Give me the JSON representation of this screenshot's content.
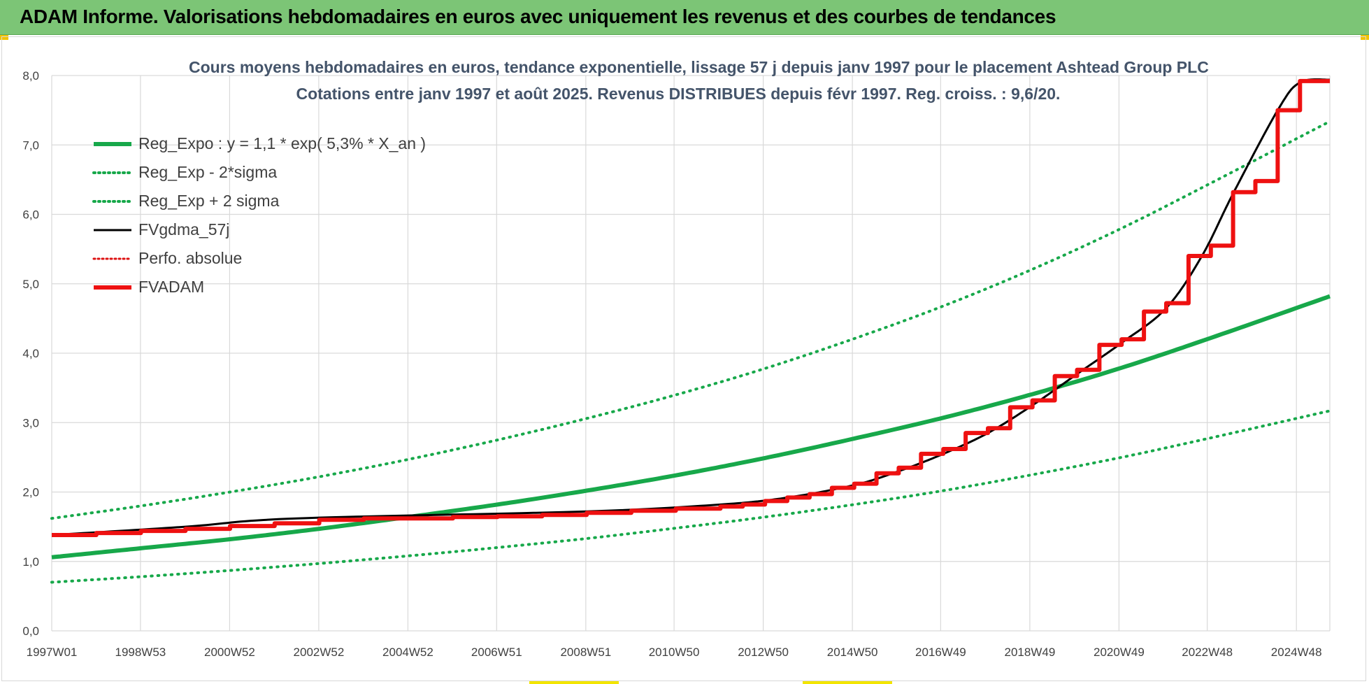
{
  "banner": {
    "title": "ADAM Informe. Valorisations hebdomadaires en euros avec uniquement les revenus et des courbes de tendances"
  },
  "colors": {
    "banner": "#7cc576",
    "reg_expo": "#17a84a",
    "fvgdma": "#000000",
    "fvadam": "#ee1111",
    "perfo": "#dd1111",
    "title_text": "#44546a",
    "grid": "#d9d9d9"
  },
  "chart_data": {
    "type": "line",
    "title_line1": "Cours moyens hebdomadaires en euros, tendance exponentielle, lissage 57 j depuis janv 1997 pour le placement Ashtead Group PLC",
    "title_line2": "Cotations entre janv 1997 et août 2025.  Revenus DISTRIBUES depuis févr 1997.  Reg. croiss. : 9,6/20.",
    "xlabel": "",
    "ylabel": "",
    "ylim": [
      0,
      8
    ],
    "xlim": [
      1997.0,
      2025.67
    ],
    "grid": true,
    "legend_position": "top-left",
    "y_ticks": [
      "0,0",
      "1,0",
      "2,0",
      "3,0",
      "4,0",
      "5,0",
      "6,0",
      "7,0",
      "8,0"
    ],
    "x_ticks": [
      {
        "label": "1997W01",
        "x": 1997.0
      },
      {
        "label": "1998W53",
        "x": 1998.99
      },
      {
        "label": "2000W52",
        "x": 2000.99
      },
      {
        "label": "2002W52",
        "x": 2002.99
      },
      {
        "label": "2004W52",
        "x": 2004.99
      },
      {
        "label": "2006W51",
        "x": 2006.98
      },
      {
        "label": "2008W51",
        "x": 2008.98
      },
      {
        "label": "2010W50",
        "x": 2010.96
      },
      {
        "label": "2012W50",
        "x": 2012.96
      },
      {
        "label": "2014W50",
        "x": 2014.96
      },
      {
        "label": "2016W49",
        "x": 2016.94
      },
      {
        "label": "2018W49",
        "x": 2018.94
      },
      {
        "label": "2020W49",
        "x": 2020.94
      },
      {
        "label": "2022W48",
        "x": 2022.92
      },
      {
        "label": "2024W48",
        "x": 2024.92
      }
    ],
    "series": [
      {
        "name": "Reg_Expo : y = 1,1 * exp( 5,3% *  X_an )",
        "style": "solid-thick",
        "color": "#17a84a",
        "points": [
          [
            1997.0,
            1.06
          ],
          [
            1999.0,
            1.19
          ],
          [
            2001.0,
            1.32
          ],
          [
            2003.0,
            1.47
          ],
          [
            2005.0,
            1.64
          ],
          [
            2007.0,
            1.82
          ],
          [
            2009.0,
            2.02
          ],
          [
            2011.0,
            2.24
          ],
          [
            2013.0,
            2.49
          ],
          [
            2015.0,
            2.77
          ],
          [
            2017.0,
            3.07
          ],
          [
            2019.0,
            3.41
          ],
          [
            2021.0,
            3.79
          ],
          [
            2023.0,
            4.22
          ],
          [
            2025.67,
            4.82
          ]
        ]
      },
      {
        "name": "Reg_Exp - 2*sigma",
        "style": "dotted",
        "color": "#17a84a",
        "points": [
          [
            1997.0,
            0.7
          ],
          [
            1999.0,
            0.78
          ],
          [
            2001.0,
            0.87
          ],
          [
            2003.0,
            0.97
          ],
          [
            2005.0,
            1.08
          ],
          [
            2007.0,
            1.2
          ],
          [
            2009.0,
            1.33
          ],
          [
            2011.0,
            1.48
          ],
          [
            2013.0,
            1.64
          ],
          [
            2015.0,
            1.82
          ],
          [
            2017.0,
            2.02
          ],
          [
            2019.0,
            2.25
          ],
          [
            2021.0,
            2.5
          ],
          [
            2023.0,
            2.78
          ],
          [
            2025.67,
            3.17
          ]
        ]
      },
      {
        "name": "Reg_Exp + 2 sigma",
        "style": "dotted",
        "color": "#17a84a",
        "points": [
          [
            1997.0,
            1.62
          ],
          [
            1999.0,
            1.8
          ],
          [
            2001.0,
            2.0
          ],
          [
            2003.0,
            2.22
          ],
          [
            2005.0,
            2.47
          ],
          [
            2007.0,
            2.75
          ],
          [
            2009.0,
            3.06
          ],
          [
            2011.0,
            3.4
          ],
          [
            2013.0,
            3.78
          ],
          [
            2015.0,
            4.21
          ],
          [
            2017.0,
            4.68
          ],
          [
            2019.0,
            5.21
          ],
          [
            2021.0,
            5.8
          ],
          [
            2023.0,
            6.45
          ],
          [
            2025.67,
            7.34
          ]
        ]
      },
      {
        "name": "FVgdma_57j",
        "style": "solid-thin",
        "color": "#000000",
        "points": [
          [
            1997.0,
            1.38
          ],
          [
            2000.0,
            1.5
          ],
          [
            2002.5,
            1.62
          ],
          [
            2009.0,
            1.72
          ],
          [
            2012.0,
            1.82
          ],
          [
            2013.5,
            1.92
          ],
          [
            2015.0,
            2.1
          ],
          [
            2016.0,
            2.3
          ],
          [
            2017.0,
            2.55
          ],
          [
            2018.0,
            2.85
          ],
          [
            2019.0,
            3.25
          ],
          [
            2020.0,
            3.7
          ],
          [
            2021.0,
            4.15
          ],
          [
            2022.0,
            4.65
          ],
          [
            2022.8,
            5.4
          ],
          [
            2023.5,
            6.3
          ],
          [
            2024.5,
            7.5
          ],
          [
            2025.0,
            7.9
          ],
          [
            2025.67,
            7.94
          ]
        ]
      },
      {
        "name": "Perfo. absolue",
        "style": "dotted",
        "color": "#dd1111",
        "points": []
      },
      {
        "name": "FVADAM",
        "style": "steps-thick",
        "color": "#ee1111",
        "points": [
          [
            1997.0,
            1.38
          ],
          [
            1998.0,
            1.41
          ],
          [
            1999.0,
            1.44
          ],
          [
            2000.0,
            1.47
          ],
          [
            2001.0,
            1.51
          ],
          [
            2002.0,
            1.55
          ],
          [
            2003.0,
            1.6
          ],
          [
            2004.0,
            1.62
          ],
          [
            2005.0,
            1.62
          ],
          [
            2006.0,
            1.64
          ],
          [
            2007.0,
            1.65
          ],
          [
            2008.0,
            1.67
          ],
          [
            2009.0,
            1.7
          ],
          [
            2010.0,
            1.73
          ],
          [
            2011.0,
            1.76
          ],
          [
            2012.0,
            1.79
          ],
          [
            2012.5,
            1.82
          ],
          [
            2013.0,
            1.87
          ],
          [
            2013.5,
            1.92
          ],
          [
            2014.0,
            1.97
          ],
          [
            2014.5,
            2.06
          ],
          [
            2015.0,
            2.12
          ],
          [
            2015.5,
            2.27
          ],
          [
            2016.0,
            2.35
          ],
          [
            2016.5,
            2.55
          ],
          [
            2017.0,
            2.62
          ],
          [
            2017.5,
            2.85
          ],
          [
            2018.0,
            2.92
          ],
          [
            2018.5,
            3.22
          ],
          [
            2019.0,
            3.32
          ],
          [
            2019.5,
            3.67
          ],
          [
            2020.0,
            3.76
          ],
          [
            2020.5,
            4.12
          ],
          [
            2021.0,
            4.2
          ],
          [
            2021.5,
            4.6
          ],
          [
            2022.0,
            4.72
          ],
          [
            2022.5,
            5.4
          ],
          [
            2023.0,
            5.55
          ],
          [
            2023.5,
            6.32
          ],
          [
            2024.0,
            6.48
          ],
          [
            2024.5,
            7.5
          ],
          [
            2025.0,
            7.92
          ],
          [
            2025.67,
            7.92
          ]
        ]
      }
    ]
  }
}
